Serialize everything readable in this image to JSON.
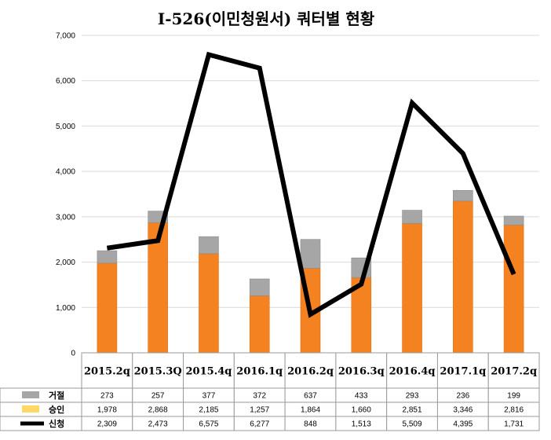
{
  "chart_data": {
    "type": "bar",
    "title": "I-526(이민청원서) 쿼터별 현황",
    "categories": [
      "2015.2q",
      "2015.3Q",
      "2015.4q",
      "2016.1q",
      "2016.2q",
      "2016.3q",
      "2016.4q",
      "2017.1q",
      "2017.2q"
    ],
    "ylim": [
      0,
      7000
    ],
    "yticks": [
      "0",
      "1,000",
      "2,000",
      "3,000",
      "4,000",
      "5,000",
      "6,000",
      "7,000"
    ],
    "grid": true,
    "legend": "data-table-bottom",
    "series": [
      {
        "name": "거절",
        "kind": "bar-stacked",
        "color": "#a6a6a6",
        "values": [
          273,
          257,
          377,
          372,
          637,
          433,
          293,
          236,
          199
        ],
        "labels": [
          "273",
          "257",
          "377",
          "372",
          "637",
          "433",
          "293",
          "236",
          "199"
        ]
      },
      {
        "name": "승인",
        "kind": "bar-stacked",
        "color": "#f58220",
        "legend_color": "#ffd966",
        "values": [
          1978,
          2868,
          2185,
          1257,
          1864,
          1660,
          2851,
          3346,
          2816
        ],
        "labels": [
          "1,978",
          "2,868",
          "2,185",
          "1,257",
          "1,864",
          "1,660",
          "2,851",
          "3,346",
          "2,816"
        ]
      },
      {
        "name": "신청",
        "kind": "line",
        "color": "#000000",
        "values": [
          2309,
          2473,
          6575,
          6277,
          848,
          1513,
          5509,
          4395,
          1731
        ],
        "labels": [
          "2,309",
          "2,473",
          "6,575",
          "6,277",
          "848",
          "1,513",
          "5,509",
          "4,395",
          "1,731"
        ]
      }
    ]
  }
}
